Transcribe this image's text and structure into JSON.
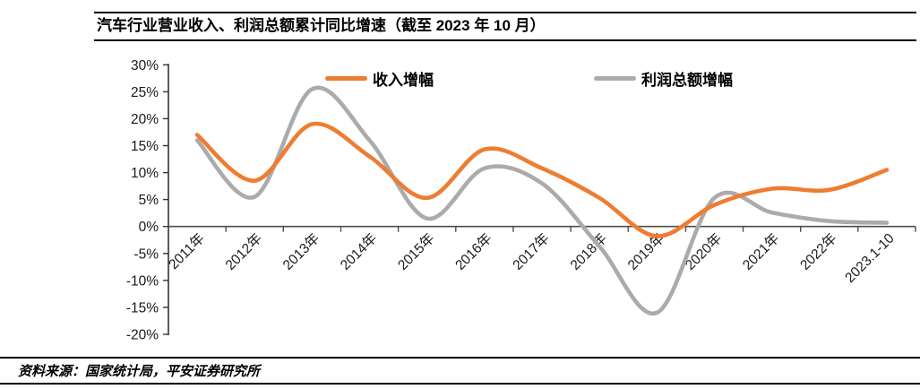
{
  "header": {
    "title": "汽车行业营业收入、利润总额累计同比增速（截至 2023 年 10 月）"
  },
  "footer": {
    "source": "资料来源：国家统计局，平安证券研究所"
  },
  "chart_data": {
    "type": "line",
    "title": "汽车行业营业收入、利润总额累计同比增速（截至 2023 年 10 月）",
    "categories": [
      "2011年",
      "2012年",
      "2013年",
      "2014年",
      "2015年",
      "2016年",
      "2017年",
      "2018年",
      "2019年",
      "2020年",
      "2021年",
      "2022年",
      "2023.1-10"
    ],
    "series": [
      {
        "name": "收入增幅",
        "color": "#ED7D31",
        "values": [
          17.0,
          8.5,
          19.0,
          13.0,
          5.3,
          14.3,
          10.8,
          5.3,
          -1.8,
          4.0,
          7.0,
          6.8,
          10.5
        ]
      },
      {
        "name": "利润总额增幅",
        "color": "#ABABAB",
        "values": [
          16.0,
          5.5,
          25.5,
          16.0,
          1.5,
          10.8,
          8.0,
          -3.7,
          -16.0,
          5.3,
          2.6,
          1.0,
          0.7
        ]
      }
    ],
    "y_ticks": [
      "30%",
      "25%",
      "20%",
      "15%",
      "10%",
      "5%",
      "0%",
      "-5%",
      "-10%",
      "-15%",
      "-20%"
    ],
    "ylim": [
      -20,
      30
    ],
    "y_unit": "%",
    "grid": false,
    "smooth": true,
    "legend_position": "top"
  }
}
